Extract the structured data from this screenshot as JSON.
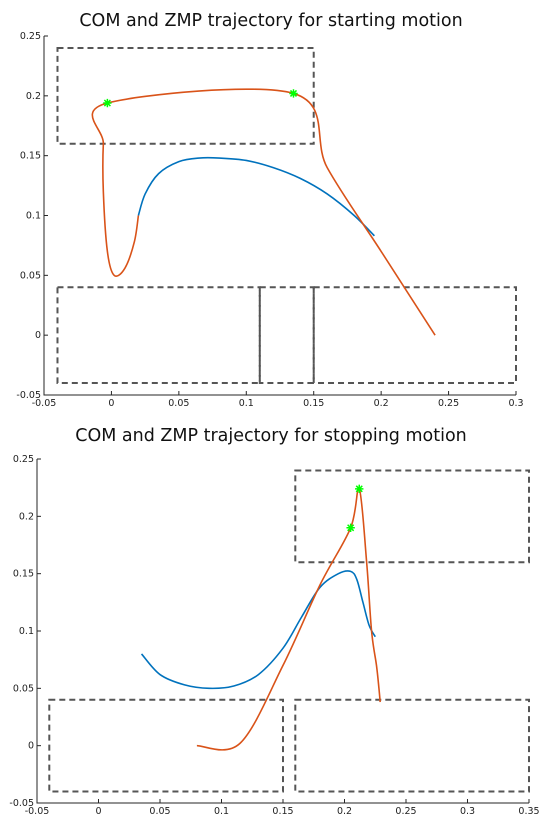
{
  "chart_data": [
    {
      "type": "line",
      "title": "COM and ZMP trajectory for starting motion",
      "xlabel": "",
      "ylabel": "",
      "xlim": [
        -0.05,
        0.3
      ],
      "ylim": [
        -0.05,
        0.25
      ],
      "x_ticks": [
        "-0.05",
        "0",
        "0.05",
        "0.1",
        "0.15",
        "0.2",
        "0.25",
        "0.3"
      ],
      "x_tick_values": [
        -0.05,
        0,
        0.05,
        0.1,
        0.15,
        0.2,
        0.25,
        0.3
      ],
      "y_ticks": [
        "-0.05",
        "0",
        "0.05",
        "0.1",
        "0.15",
        "0.2",
        "0.25"
      ],
      "y_tick_values": [
        -0.05,
        0,
        0.05,
        0.1,
        0.15,
        0.2,
        0.25
      ],
      "grid": false,
      "series": [
        {
          "color": "#0072bd",
          "x": [
            0.02,
            0.025,
            0.035,
            0.05,
            0.065,
            0.08,
            0.1,
            0.12,
            0.14,
            0.16,
            0.18,
            0.195
          ],
          "y": [
            0.1,
            0.118,
            0.135,
            0.145,
            0.148,
            0.148,
            0.146,
            0.14,
            0.131,
            0.118,
            0.1,
            0.083
          ]
        },
        {
          "color": "#d95319",
          "x": [
            0.24,
            0.2,
            0.16,
            0.135,
            -0.003,
            -0.006,
            -0.006,
            -0.003,
            0.002,
            0.01,
            0.017,
            0.02
          ],
          "y": [
            0.0,
            0.07,
            0.14,
            0.202,
            0.194,
            0.16,
            0.12,
            0.07,
            0.05,
            0.056,
            0.078,
            0.1
          ]
        }
      ],
      "markers": {
        "color": "#00ff00",
        "symbol": "*",
        "x": [
          -0.003,
          0.135
        ],
        "y": [
          0.194,
          0.202
        ]
      },
      "boxes": [
        {
          "x": [
            -0.04,
            0.15
          ],
          "y": [
            0.16,
            0.24
          ]
        },
        {
          "x": [
            -0.04,
            0.11
          ],
          "y": [
            -0.04,
            0.04
          ]
        },
        {
          "x": [
            0.11,
            0.15
          ],
          "y": [
            -0.04,
            0.04
          ]
        },
        {
          "x": [
            0.15,
            0.3
          ],
          "y": [
            -0.04,
            0.04
          ]
        }
      ]
    },
    {
      "type": "line",
      "title": "COM and ZMP trajectory for stopping motion",
      "xlabel": "",
      "ylabel": "",
      "xlim": [
        -0.05,
        0.35
      ],
      "ylim": [
        -0.05,
        0.25
      ],
      "x_ticks": [
        "-0.05",
        "0",
        "0.05",
        "0.1",
        "0.15",
        "0.2",
        "0.25",
        "0.3",
        "0.35"
      ],
      "x_tick_values": [
        -0.05,
        0,
        0.05,
        0.1,
        0.15,
        0.2,
        0.25,
        0.3,
        0.35
      ],
      "y_ticks": [
        "-0.05",
        "0",
        "0.05",
        "0.1",
        "0.15",
        "0.2",
        "0.25"
      ],
      "y_tick_values": [
        -0.05,
        0,
        0.05,
        0.1,
        0.15,
        0.2,
        0.25
      ],
      "grid": false,
      "series": [
        {
          "color": "#0072bd",
          "x": [
            0.035,
            0.05,
            0.07,
            0.09,
            0.11,
            0.13,
            0.15,
            0.165,
            0.18,
            0.195,
            0.205,
            0.21,
            0.215,
            0.22,
            0.225
          ],
          "y": [
            0.08,
            0.062,
            0.053,
            0.05,
            0.052,
            0.062,
            0.085,
            0.112,
            0.138,
            0.15,
            0.152,
            0.145,
            0.125,
            0.105,
            0.095
          ]
        },
        {
          "color": "#d95319",
          "x": [
            0.08,
            0.115,
            0.15,
            0.18,
            0.205,
            0.212,
            0.218,
            0.222,
            0.226,
            0.228,
            0.229
          ],
          "y": [
            0.0,
            0.002,
            0.07,
            0.14,
            0.19,
            0.224,
            0.16,
            0.1,
            0.07,
            0.05,
            0.038
          ]
        }
      ],
      "markers": {
        "color": "#00ff00",
        "symbol": "*",
        "x": [
          0.205,
          0.212
        ],
        "y": [
          0.19,
          0.224
        ]
      },
      "boxes": [
        {
          "x": [
            0.16,
            0.35
          ],
          "y": [
            0.16,
            0.24
          ]
        },
        {
          "x": [
            -0.04,
            0.15
          ],
          "y": [
            -0.04,
            0.04
          ]
        },
        {
          "x": [
            0.16,
            0.35
          ],
          "y": [
            -0.04,
            0.04
          ]
        }
      ]
    }
  ]
}
